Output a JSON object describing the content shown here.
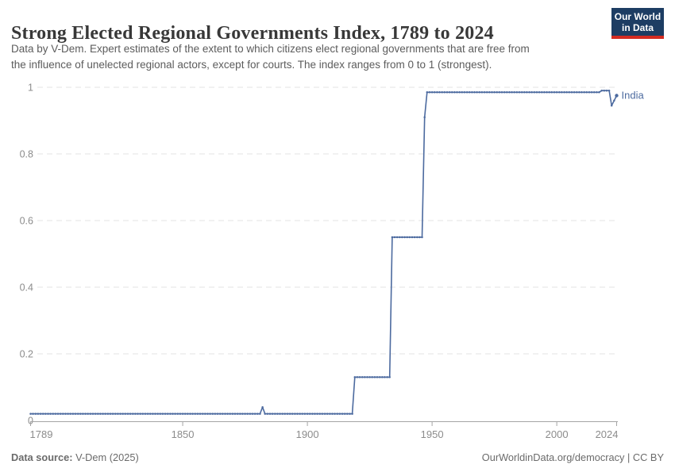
{
  "header": {
    "title": "Strong Elected Regional Governments Index, 1789 to 2024",
    "subtitle_lines": [
      "Data by V-Dem. Expert estimates of the extent to which citizens elect regional governments that are free from",
      "the influence of unelected regional actors, except for courts. The index ranges from 0 to 1 (strongest)."
    ],
    "logo": {
      "line1": "Our World",
      "line2": "in Data",
      "bg_color": "#1d3d63",
      "bar_color": "#d42b21"
    }
  },
  "footer": {
    "source_label": "Data source:",
    "source_value": " V-Dem (2025)",
    "attribution": "OurWorldinData.org/democracy | CC BY"
  },
  "colors": {
    "line": "#4c6a9f",
    "grid": "#e3e3e3",
    "axis": "#a5a5a5",
    "tick_text": "#8c8c8c"
  },
  "chart_data": {
    "type": "line",
    "title": "Strong Elected Regional Governments Index, 1789 to 2024",
    "entity": "India",
    "xlabel": "",
    "ylabel": "",
    "x_range": [
      1789,
      2024
    ],
    "y_range": [
      0,
      1
    ],
    "x_ticks": [
      1789,
      1850,
      1900,
      1950,
      2000,
      2024
    ],
    "y_ticks": [
      0,
      0.2,
      0.4,
      0.6,
      0.8,
      1
    ],
    "grid": true,
    "legend_position": "end-of-line",
    "series": [
      {
        "name": "India",
        "color": "#4c6a9f",
        "interpolation": "yearly points, linear between breakpoints",
        "step_breakpoints": [
          [
            1789,
            0.02
          ],
          [
            1881,
            0.02
          ],
          [
            1882,
            0.04
          ],
          [
            1883,
            0.02
          ],
          [
            1918,
            0.02
          ],
          [
            1919,
            0.13
          ],
          [
            1933,
            0.13
          ],
          [
            1934,
            0.55
          ],
          [
            1946,
            0.55
          ],
          [
            1947,
            0.91
          ],
          [
            1948,
            0.985
          ],
          [
            2017,
            0.985
          ],
          [
            2018,
            0.99
          ],
          [
            2021,
            0.99
          ],
          [
            2022,
            0.945
          ],
          [
            2023,
            0.96
          ],
          [
            2024,
            0.975
          ]
        ]
      }
    ]
  }
}
